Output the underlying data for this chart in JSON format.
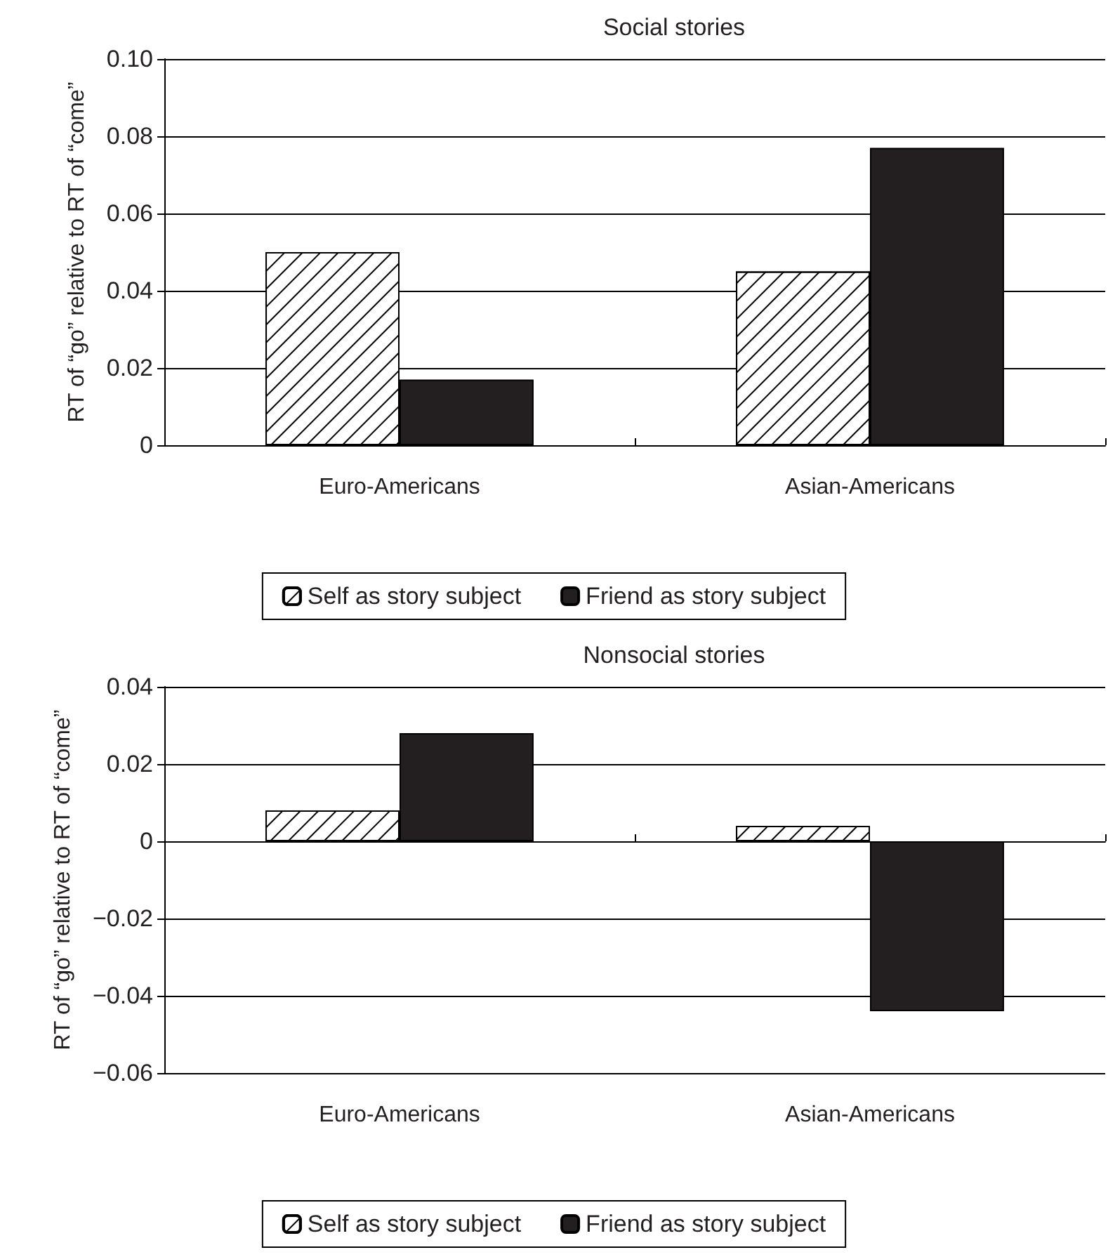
{
  "chart_data": [
    {
      "type": "bar",
      "title": "Social stories",
      "ylabel": "RT of “go” relative to RT of “come”",
      "categories": [
        "Euro-Americans",
        "Asian-Americans"
      ],
      "series": [
        {
          "name": "Self as story subject",
          "color": "#ffffff",
          "values": [
            0.05,
            0.045
          ]
        },
        {
          "name": "Friend as story subject",
          "color": "#231f20",
          "values": [
            0.017,
            0.077
          ]
        }
      ],
      "ylim": [
        0,
        0.1
      ],
      "yticks": [
        0,
        0.02,
        0.04,
        0.06,
        0.08,
        {
          "value": 0.1,
          "label": "0.10"
        }
      ],
      "grid": "y",
      "legend": "bottom"
    },
    {
      "type": "bar",
      "title": "Nonsocial stories",
      "ylabel": "RT of “go” relative to RT of “come”",
      "categories": [
        "Euro-Americans",
        "Asian-Americans"
      ],
      "series": [
        {
          "name": "Self as story subject",
          "color": "#ffffff",
          "values": [
            0.008,
            0.004
          ]
        },
        {
          "name": "Friend as story subject",
          "color": "#231f20",
          "values": [
            0.028,
            -0.044
          ]
        }
      ],
      "ylim": [
        -0.06,
        0.04
      ],
      "yticks": [
        {
          "value": -0.06,
          "label": "−0.06"
        },
        {
          "value": -0.04,
          "label": "−0.04"
        },
        {
          "value": -0.02,
          "label": "−0.02"
        },
        0,
        0.02,
        0.04
      ],
      "grid": "y",
      "legend": "bottom"
    }
  ]
}
